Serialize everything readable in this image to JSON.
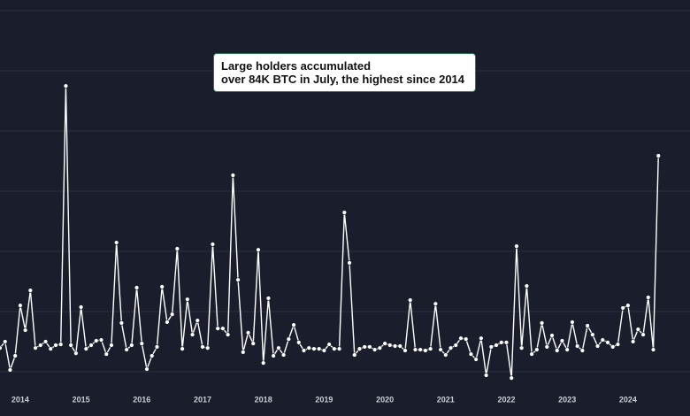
{
  "chart_data": {
    "type": "line",
    "annotation": [
      "Large holders accumulated",
      "over 84K BTC in July, the highest since 2014"
    ],
    "categories": [
      null,
      null,
      null,
      null,
      "2014",
      null,
      null,
      null,
      null,
      null,
      null,
      null,
      null,
      null,
      null,
      null,
      "2015",
      null,
      null,
      null,
      null,
      null,
      null,
      null,
      null,
      null,
      null,
      null,
      "2016",
      null,
      null,
      null,
      null,
      null,
      null,
      null,
      null,
      null,
      null,
      null,
      "2017",
      null,
      null,
      null,
      null,
      null,
      null,
      null,
      null,
      null,
      null,
      null,
      "2018",
      null,
      null,
      null,
      null,
      null,
      null,
      null,
      null,
      null,
      null,
      null,
      "2019",
      null,
      null,
      null,
      null,
      null,
      null,
      null,
      null,
      null,
      null,
      null,
      "2020",
      null,
      null,
      null,
      null,
      null,
      null,
      null,
      null,
      null,
      null,
      null,
      "2021",
      null,
      null,
      null,
      null,
      null,
      null,
      null,
      null,
      null,
      null,
      null,
      "2022",
      null,
      null,
      null,
      null,
      null,
      null,
      null,
      null,
      null,
      null,
      null,
      "2023",
      null,
      null,
      null,
      null,
      null,
      null,
      null,
      null,
      null,
      null,
      null,
      "2024",
      null,
      null,
      null,
      null,
      null,
      null
    ],
    "values": [
      14.9,
      17.2,
      7.0,
      12.1,
      30.2,
      21.3,
      35.6,
      14.9,
      15.9,
      17.2,
      14.6,
      15.9,
      16.2,
      109.1,
      15.9,
      13.0,
      29.6,
      14.6,
      15.9,
      17.5,
      17.8,
      12.7,
      15.9,
      52.8,
      23.9,
      14.3,
      15.9,
      36.6,
      16.5,
      7.3,
      12.1,
      15.3,
      36.9,
      24.2,
      27.0,
      50.6,
      14.6,
      32.4,
      19.7,
      24.8,
      15.3,
      14.9,
      52.2,
      21.9,
      21.9,
      19.7,
      77.0,
      39.4,
      13.4,
      20.4,
      16.5,
      50.2,
      9.5,
      32.8,
      12.1,
      14.9,
      12.4,
      18.1,
      23.2,
      16.9,
      14.0,
      14.9,
      14.6,
      14.6,
      14.0,
      16.2,
      14.6,
      14.6,
      63.6,
      45.5,
      12.4,
      14.6,
      15.3,
      15.3,
      14.3,
      14.9,
      16.5,
      15.9,
      15.6,
      15.6,
      14.0,
      32.1,
      14.3,
      14.3,
      14.0,
      14.6,
      30.8,
      14.3,
      12.4,
      14.9,
      15.9,
      18.4,
      18.1,
      12.7,
      10.8,
      18.4,
      5.1,
      15.3,
      15.9,
      16.9,
      16.9,
      4.1,
      51.5,
      14.9,
      37.2,
      12.7,
      14.3,
      23.9,
      15.3,
      19.4,
      14.0,
      17.5,
      14.3,
      24.2,
      15.6,
      14.0,
      22.9,
      19.7,
      15.6,
      17.8,
      16.9,
      15.3,
      16.2,
      29.3,
      30.2,
      17.2,
      21.6,
      19.7,
      33.1,
      14.3,
      84
    ],
    "color": "#ffffff",
    "ylim": [
      0,
      140
    ]
  }
}
